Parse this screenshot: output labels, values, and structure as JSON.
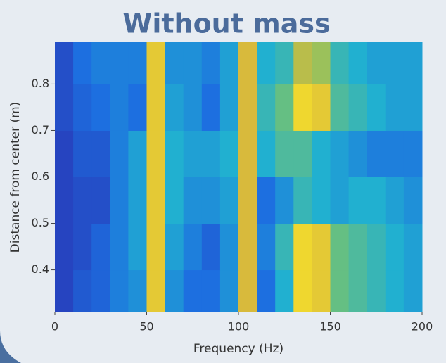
{
  "chart_data": {
    "type": "heatmap",
    "title": "Without mass",
    "x_label": "Frequency (Hz)",
    "y_label": "Distance from center (m)",
    "xbins": [
      0,
      10,
      20,
      30,
      40,
      50,
      60,
      70,
      80,
      90,
      100,
      110,
      120,
      130,
      140,
      150,
      160,
      170,
      180,
      190,
      200
    ],
    "ybins": [
      0.31,
      0.4,
      0.5,
      0.6,
      0.7,
      0.8,
      0.89
    ],
    "z": [
      [
        0.1,
        0.2,
        0.25,
        0.35,
        0.4,
        0.9,
        0.4,
        0.3,
        0.3,
        0.4,
        0.85,
        0.3,
        0.5,
        0.95,
        0.9,
        0.65,
        0.6,
        0.55,
        0.5,
        0.45
      ],
      [
        0.1,
        0.15,
        0.25,
        0.35,
        0.45,
        0.9,
        0.45,
        0.35,
        0.25,
        0.4,
        0.85,
        0.35,
        0.55,
        0.95,
        0.9,
        0.65,
        0.6,
        0.55,
        0.5,
        0.45
      ],
      [
        0.1,
        0.15,
        0.15,
        0.35,
        0.45,
        0.9,
        0.5,
        0.4,
        0.4,
        0.45,
        0.85,
        0.3,
        0.4,
        0.55,
        0.5,
        0.45,
        0.5,
        0.5,
        0.45,
        0.4
      ],
      [
        0.1,
        0.2,
        0.2,
        0.35,
        0.45,
        0.9,
        0.5,
        0.45,
        0.45,
        0.5,
        0.85,
        0.5,
        0.6,
        0.6,
        0.5,
        0.45,
        0.4,
        0.35,
        0.35,
        0.35
      ],
      [
        0.15,
        0.25,
        0.3,
        0.35,
        0.3,
        0.9,
        0.45,
        0.4,
        0.3,
        0.45,
        0.85,
        0.55,
        0.65,
        0.95,
        0.9,
        0.6,
        0.55,
        0.5,
        0.45,
        0.45
      ],
      [
        0.15,
        0.3,
        0.35,
        0.35,
        0.35,
        0.9,
        0.4,
        0.4,
        0.35,
        0.45,
        0.85,
        0.5,
        0.55,
        0.8,
        0.75,
        0.55,
        0.5,
        0.45,
        0.45,
        0.45
      ]
    ],
    "colormap": "parula",
    "xlim": [
      0,
      200
    ],
    "xticks": [
      0,
      50,
      100,
      150,
      200
    ],
    "ylim": [
      0.31,
      0.89
    ],
    "yticks": [
      0.4,
      0.5,
      0.6,
      0.7,
      0.8
    ]
  }
}
